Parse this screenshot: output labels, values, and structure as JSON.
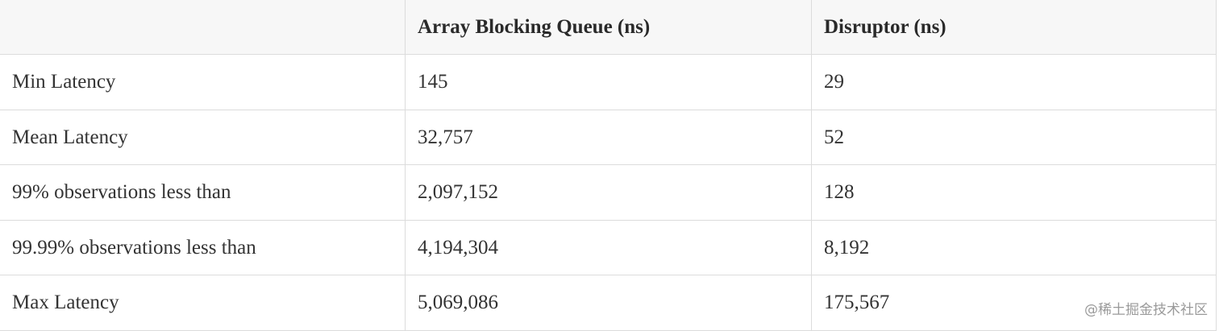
{
  "table": {
    "header": [
      "Array Blocking Queue (ns)",
      "Disruptor (ns)"
    ],
    "rows": [
      [
        "Min Latency",
        "145",
        "29"
      ],
      [
        "Mean Latency",
        "32,757",
        "52"
      ],
      [
        "99% observations less than",
        "2,097,152",
        "128"
      ],
      [
        "99.99% observations less than",
        "4,194,304",
        "8,192"
      ],
      [
        "Max Latency",
        "5,069,086",
        "175,567"
      ]
    ]
  },
  "watermark": "@稀土掘金技术社区"
}
